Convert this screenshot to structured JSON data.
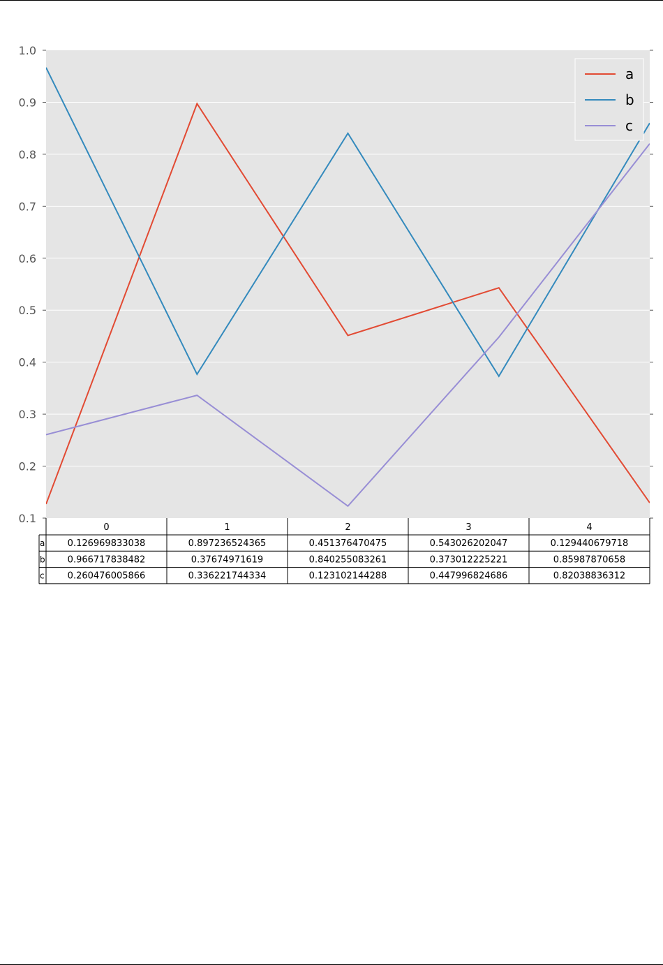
{
  "chart_data": {
    "type": "line",
    "x": [
      0,
      1,
      2,
      3,
      4
    ],
    "ylim": [
      0.1,
      1.0
    ],
    "yticks": [
      "0.1",
      "0.2",
      "0.3",
      "0.4",
      "0.5",
      "0.6",
      "0.7",
      "0.8",
      "0.9",
      "1.0"
    ],
    "grid": true,
    "legend": "top-right",
    "series": [
      {
        "name": "a",
        "color": "#E24A33",
        "values": [
          0.126969833038,
          0.897236524365,
          0.451376470475,
          0.543026202047,
          0.129440679718
        ]
      },
      {
        "name": "b",
        "color": "#348ABD",
        "values": [
          0.966717838482,
          0.37674971619,
          0.840255083261,
          0.373012225221,
          0.85987870658
        ]
      },
      {
        "name": "c",
        "color": "#988ED5",
        "values": [
          0.260476005866,
          0.336221744334,
          0.123102144288,
          0.447996824686,
          0.82038836312
        ]
      }
    ],
    "table": {
      "col_labels": [
        "0",
        "1",
        "2",
        "3",
        "4"
      ],
      "row_labels": [
        "a",
        "b",
        "c"
      ],
      "cells": [
        [
          "0.126969833038",
          "0.897236524365",
          "0.451376470475",
          "0.543026202047",
          "0.129440679718"
        ],
        [
          "0.966717838482",
          "0.37674971619",
          "0.840255083261",
          "0.373012225221",
          "0.85987870658"
        ],
        [
          "0.260476005866",
          "0.336221744334",
          "0.123102144288",
          "0.447996824686",
          "0.82038836312"
        ]
      ]
    }
  }
}
